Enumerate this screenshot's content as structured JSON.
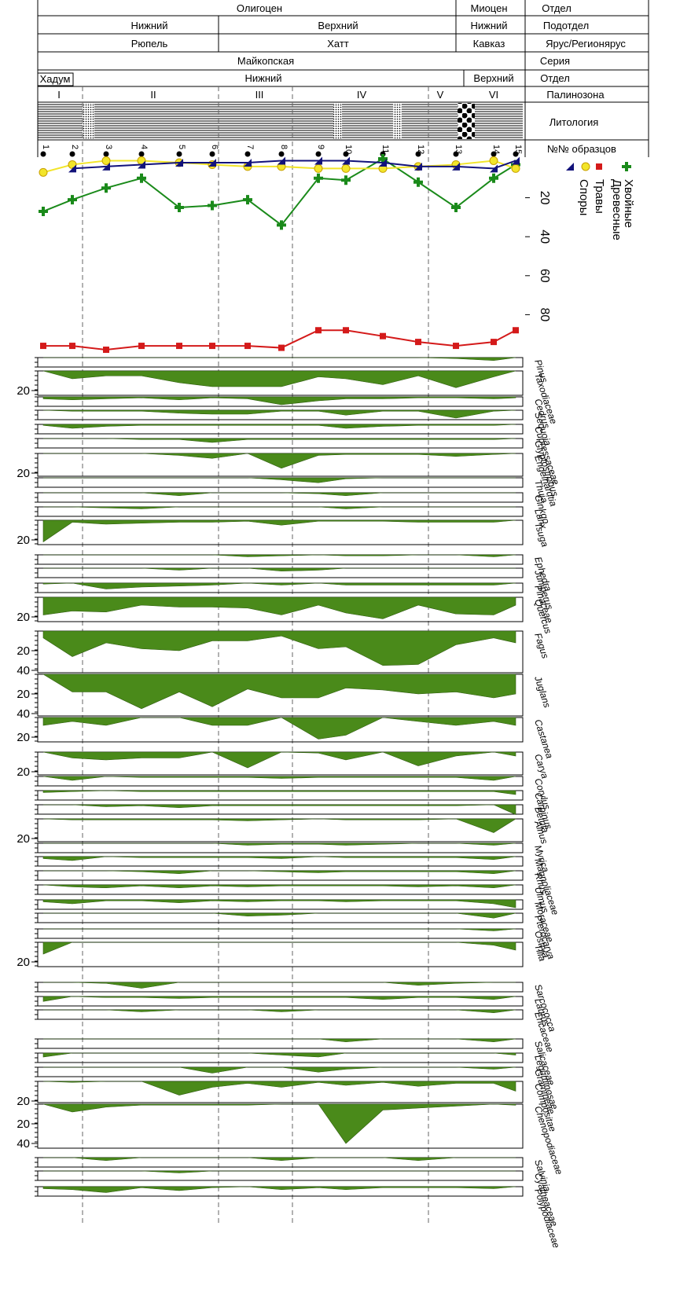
{
  "header": {
    "rows": [
      [
        "Олигоцен",
        "Миоцен",
        "Отдел"
      ],
      [
        "Нижний",
        "Верхний",
        "Нижний",
        "Подотдел"
      ],
      [
        "Рюпель",
        "Хатт",
        "Кавказ",
        "Ярус/Регионярус"
      ],
      [
        "Майкопская",
        "Серия"
      ],
      [
        "Хадум",
        "Нижний",
        "Верхний",
        "Отдел"
      ],
      [
        "I",
        "II",
        "III",
        "IV",
        "V",
        "VI",
        "Палинозона"
      ],
      [
        "Литология"
      ],
      [
        "№№ образцов"
      ]
    ]
  },
  "chart_data": {
    "type": "pollen",
    "categories": [
      1,
      2,
      3,
      4,
      5,
      6,
      7,
      8,
      9,
      10,
      11,
      12,
      13,
      14,
      15
    ],
    "summary": {
      "ylim": [
        0,
        100
      ],
      "yticks": [
        20,
        40,
        60,
        80
      ],
      "series": [
        {
          "name": "Хвойные",
          "color": "#1a8a1a",
          "values": [
            27,
            21,
            15,
            10,
            25,
            24,
            21,
            34,
            10,
            11,
            0,
            12,
            25,
            10,
            3
          ]
        },
        {
          "name": "Древесные",
          "color": "#d41a1a",
          "values": [
            96,
            96,
            98,
            96,
            96,
            96,
            96,
            97,
            88,
            88,
            91,
            94,
            96,
            94,
            88
          ]
        },
        {
          "name": "Травы",
          "color": "#f2e52a",
          "values": [
            7,
            3,
            1,
            1,
            2,
            3,
            4,
            4,
            5,
            5,
            5,
            4,
            3,
            1,
            5
          ]
        },
        {
          "name": "Споры",
          "color": "#12127a",
          "values": [
            null,
            5,
            4,
            3,
            2,
            2,
            2,
            1,
            1,
            1,
            2,
            4,
            4,
            5,
            1
          ]
        }
      ]
    },
    "area_color": "#4a8a1a",
    "taxa": [
      {
        "name": "Pinus",
        "values": [
          0,
          0,
          0,
          0,
          0,
          0,
          0,
          0,
          0,
          0,
          0,
          0,
          1,
          3,
          0
        ]
      },
      {
        "name": "Taxodiaceae",
        "values": [
          0,
          8,
          5,
          5,
          12,
          16,
          16,
          16,
          6,
          8,
          14,
          5,
          17,
          6,
          0
        ],
        "ticks": [
          20
        ]
      },
      {
        "name": "Cedrus",
        "values": [
          2,
          3,
          2,
          1,
          3,
          1,
          2,
          8,
          4,
          2,
          2,
          1,
          1,
          2,
          1
        ]
      },
      {
        "name": "Sequoia",
        "values": [
          0,
          1,
          1,
          1,
          3,
          4,
          4,
          1,
          1,
          5,
          1,
          1,
          8,
          1,
          0
        ]
      },
      {
        "name": "Cupressaceae",
        "values": [
          1,
          4,
          2,
          1,
          1,
          1,
          1,
          1,
          1,
          4,
          2,
          1,
          1,
          1,
          0
        ]
      },
      {
        "name": "Glyptostrobus",
        "values": [
          0,
          0,
          0,
          1,
          1,
          4,
          1,
          1,
          1,
          1,
          1,
          1,
          1,
          1,
          0
        ]
      },
      {
        "name": "Engelhardtia",
        "values": [
          0,
          0,
          0,
          0,
          2,
          5,
          0,
          15,
          2,
          1,
          1,
          1,
          3,
          1,
          0
        ],
        "ticks": [
          20
        ]
      },
      {
        "name": "Thuja",
        "values": [
          0,
          0,
          0,
          0,
          0,
          0,
          0,
          2,
          5,
          1,
          0,
          0,
          0,
          0,
          0
        ]
      },
      {
        "name": "Ginkgo",
        "values": [
          0,
          0,
          0,
          0,
          3,
          0,
          0,
          0,
          1,
          3,
          0,
          0,
          0,
          0,
          0
        ]
      },
      {
        "name": "Larix",
        "values": [
          0,
          0,
          1,
          2,
          0,
          0,
          0,
          0,
          0,
          2,
          0,
          0,
          0,
          0,
          0
        ]
      },
      {
        "name": "Tsuga",
        "values": [
          22,
          2,
          4,
          3,
          2,
          2,
          1,
          5,
          1,
          1,
          1,
          2,
          2,
          2,
          0
        ],
        "ticks": [
          20
        ]
      },
      {
        "name": "Ephedra",
        "values": [
          0,
          0,
          0,
          0,
          0,
          0,
          2,
          1,
          0,
          1,
          1,
          0,
          0,
          2,
          0
        ]
      },
      {
        "name": "Juniperus",
        "values": [
          0,
          0,
          0,
          0,
          2,
          0,
          0,
          3,
          2,
          0,
          0,
          0,
          0,
          0,
          0
        ]
      },
      {
        "name": "Pinaceae",
        "values": [
          1,
          0,
          6,
          4,
          3,
          2,
          0,
          2,
          0,
          2,
          2,
          2,
          2,
          2,
          0
        ]
      },
      {
        "name": "Quercus",
        "values": [
          18,
          14,
          15,
          8,
          10,
          10,
          11,
          18,
          8,
          16,
          22,
          8,
          17,
          18,
          8
        ],
        "ticks": [
          20
        ]
      },
      {
        "name": "Fagus",
        "values": [
          7,
          26,
          12,
          18,
          20,
          10,
          10,
          5,
          18,
          16,
          35,
          34,
          14,
          7,
          12
        ],
        "ticks": [
          20,
          40
        ]
      },
      {
        "name": "Juglans",
        "values": [
          0,
          18,
          18,
          35,
          18,
          33,
          15,
          24,
          24,
          14,
          16,
          20,
          18,
          24,
          20
        ],
        "ticks": [
          20,
          40
        ]
      },
      {
        "name": "Castanea",
        "values": [
          8,
          4,
          8,
          0,
          0,
          8,
          8,
          0,
          22,
          18,
          0,
          4,
          8,
          4,
          8
        ],
        "ticks": [
          20
        ]
      },
      {
        "name": "Carya",
        "values": [
          0,
          6,
          8,
          6,
          6,
          0,
          16,
          0,
          1,
          8,
          0,
          14,
          4,
          0,
          4
        ],
        "ticks": [
          20
        ]
      },
      {
        "name": "Corylus",
        "values": [
          0,
          4,
          0,
          1,
          1,
          1,
          1,
          2,
          1,
          1,
          1,
          1,
          1,
          4,
          0
        ]
      },
      {
        "name": "Carpinus",
        "values": [
          2,
          1,
          0,
          1,
          1,
          1,
          1,
          1,
          1,
          1,
          1,
          1,
          1,
          1,
          4
        ]
      },
      {
        "name": "Betula",
        "values": [
          0,
          0,
          2,
          1,
          3,
          1,
          1,
          1,
          1,
          1,
          1,
          1,
          1,
          0,
          10
        ]
      },
      {
        "name": "Alnus",
        "values": [
          0,
          1,
          1,
          1,
          1,
          1,
          2,
          1,
          0,
          1,
          1,
          1,
          0,
          14,
          0
        ],
        "ticks": [
          20
        ]
      },
      {
        "name": "Myrica",
        "values": [
          0,
          0,
          0,
          0,
          0,
          0,
          2,
          1,
          1,
          2,
          1,
          0,
          0,
          2,
          0
        ]
      },
      {
        "name": "Magnoliaceae",
        "values": [
          2,
          4,
          0,
          1,
          1,
          1,
          1,
          2,
          0,
          1,
          1,
          1,
          1,
          3,
          0
        ]
      },
      {
        "name": "Rhus",
        "values": [
          0,
          0,
          0,
          1,
          3,
          0,
          0,
          1,
          2,
          1,
          1,
          1,
          1,
          3,
          0
        ]
      },
      {
        "name": "Ulmus",
        "values": [
          0,
          2,
          3,
          1,
          3,
          1,
          2,
          1,
          1,
          1,
          1,
          2,
          1,
          3,
          0
        ]
      },
      {
        "name": "Moraceae",
        "values": [
          2,
          4,
          1,
          1,
          3,
          1,
          2,
          1,
          1,
          2,
          1,
          1,
          1,
          4,
          8
        ]
      },
      {
        "name": "Pterocarya",
        "values": [
          0,
          0,
          0,
          0,
          0,
          0,
          3,
          2,
          0,
          0,
          0,
          0,
          0,
          5,
          0
        ]
      },
      {
        "name": "Ostrya",
        "values": [
          0,
          0,
          0,
          0,
          0,
          0,
          0,
          0,
          0,
          0,
          0,
          0,
          0,
          2,
          0
        ]
      },
      {
        "name": "Tilia",
        "values": [
          12,
          0,
          0,
          0,
          0,
          0,
          0,
          0,
          0,
          0,
          0,
          0,
          0,
          3,
          8
        ],
        "ticks": [
          20
        ]
      },
      {
        "name": "Sarcococca",
        "values": [
          0,
          0,
          1,
          6,
          0,
          0,
          0,
          0,
          0,
          0,
          0,
          3,
          1,
          0,
          0
        ]
      },
      {
        "name": "Laurus",
        "values": [
          5,
          0,
          1,
          1,
          2,
          1,
          1,
          1,
          1,
          1,
          3,
          1,
          1,
          3,
          0
        ]
      },
      {
        "name": "Ericaceae",
        "values": [
          0,
          0,
          0,
          2,
          0,
          0,
          0,
          2,
          0,
          0,
          0,
          0,
          0,
          3,
          0
        ]
      },
      {
        "name": "Salicaceae",
        "values": [
          0,
          0,
          0,
          0,
          0,
          0,
          0,
          0,
          0,
          3,
          0,
          0,
          0,
          3,
          0
        ]
      },
      {
        "name": "Leguminosae",
        "values": [
          4,
          0,
          0,
          0,
          0,
          0,
          0,
          2,
          4,
          0,
          0,
          0,
          0,
          0,
          2
        ]
      },
      {
        "name": "Gramineae",
        "values": [
          0,
          0,
          0,
          0,
          0,
          6,
          0,
          0,
          5,
          2,
          0,
          0,
          0,
          2,
          0
        ]
      },
      {
        "name": "Compositae",
        "values": [
          0,
          1,
          0,
          0,
          14,
          6,
          2,
          6,
          1,
          4,
          1,
          5,
          2,
          2,
          10
        ],
        "ticks": [
          20
        ]
      },
      {
        "name": "Chenopodiaceae",
        "values": [
          0,
          8,
          3,
          1,
          1,
          1,
          1,
          0,
          0,
          40,
          6,
          4,
          2,
          0,
          1
        ],
        "ticks": [
          20,
          40
        ]
      },
      {
        "name": "Salvinia",
        "values": [
          0,
          0,
          3,
          0,
          0,
          0,
          0,
          3,
          0,
          0,
          0,
          3,
          0,
          0,
          0
        ]
      },
      {
        "name": "Cyatheaceae",
        "values": [
          0,
          0,
          0,
          0,
          2,
          0,
          0,
          0,
          0,
          0,
          0,
          0,
          0,
          0,
          0
        ]
      },
      {
        "name": "Polypodiaceae",
        "values": [
          2,
          3,
          6,
          1,
          4,
          1,
          0,
          3,
          1,
          3,
          1,
          1,
          1,
          2,
          0
        ]
      }
    ]
  }
}
